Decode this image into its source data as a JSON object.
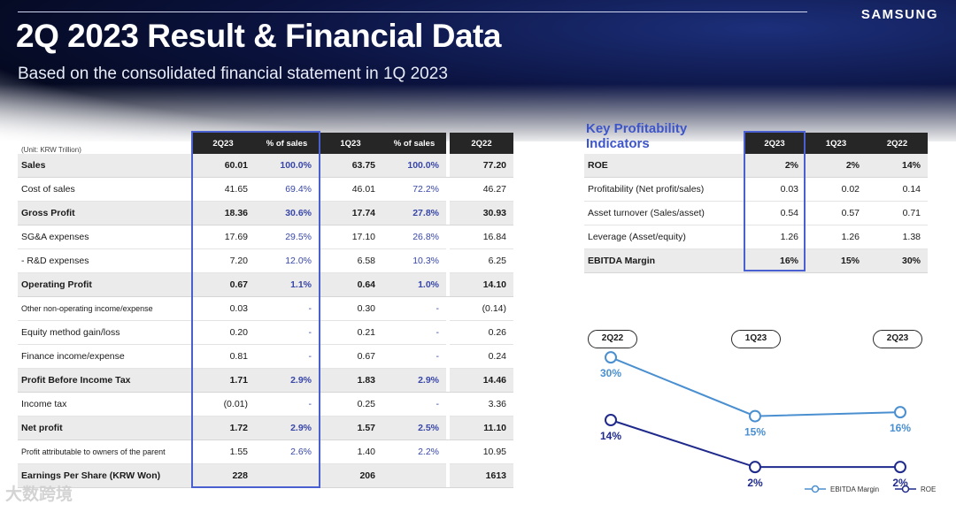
{
  "header": {
    "brand": "SAMSUNG",
    "title": "2Q 2023 Result & Financial Data",
    "subtitle": "Based on the consolidated financial statement in 1Q 2023"
  },
  "income_table": {
    "unit_label": "(Unit: KRW Trillion)",
    "columns": [
      "2Q23",
      "% of sales",
      "1Q23",
      "% of sales",
      "2Q22"
    ],
    "rows": [
      {
        "label": "Sales",
        "bold": true,
        "q223": "60.01",
        "pct_q223": "100.0%",
        "q123": "63.75",
        "pct_q123": "100.0%",
        "q222": "77.20"
      },
      {
        "label": "Cost of sales",
        "bold": false,
        "q223": "41.65",
        "pct_q223": "69.4%",
        "q123": "46.01",
        "pct_q123": "72.2%",
        "q222": "46.27"
      },
      {
        "label": "Gross Profit",
        "bold": true,
        "q223": "18.36",
        "pct_q223": "30.6%",
        "q123": "17.74",
        "pct_q123": "27.8%",
        "q222": "30.93"
      },
      {
        "label": "SG&A expenses",
        "bold": false,
        "q223": "17.69",
        "pct_q223": "29.5%",
        "q123": "17.10",
        "pct_q123": "26.8%",
        "q222": "16.84"
      },
      {
        "label": " - R&D expenses",
        "bold": false,
        "q223": "7.20",
        "pct_q223": "12.0%",
        "q123": "6.58",
        "pct_q123": "10.3%",
        "q222": "6.25"
      },
      {
        "label": "Operating Profit",
        "bold": true,
        "q223": "0.67",
        "pct_q223": "1.1%",
        "q123": "0.64",
        "pct_q123": "1.0%",
        "q222": "14.10"
      },
      {
        "label": "Other non-operating income/expense",
        "bold": false,
        "q223": "0.03",
        "pct_q223": "-",
        "q123": "0.30",
        "pct_q123": "-",
        "q222": "(0.14)"
      },
      {
        "label": "Equity method gain/loss",
        "bold": false,
        "q223": "0.20",
        "pct_q223": "-",
        "q123": "0.21",
        "pct_q123": "-",
        "q222": "0.26"
      },
      {
        "label": "Finance income/expense",
        "bold": false,
        "q223": "0.81",
        "pct_q223": "-",
        "q123": "0.67",
        "pct_q123": "-",
        "q222": "0.24"
      },
      {
        "label": "Profit Before Income Tax",
        "bold": true,
        "q223": "1.71",
        "pct_q223": "2.9%",
        "q123": "1.83",
        "pct_q123": "2.9%",
        "q222": "14.46"
      },
      {
        "label": "Income tax",
        "bold": false,
        "q223": "(0.01)",
        "pct_q223": "-",
        "q123": "0.25",
        "pct_q123": "-",
        "q222": "3.36"
      },
      {
        "label": "Net profit",
        "bold": true,
        "q223": "1.72",
        "pct_q223": "2.9%",
        "q123": "1.57",
        "pct_q123": "2.5%",
        "q222": "11.10"
      },
      {
        "label": "Profit attributable to owners of the parent",
        "bold": false,
        "q223": "1.55",
        "pct_q223": "2.6%",
        "q123": "1.40",
        "pct_q123": "2.2%",
        "q222": "10.95"
      },
      {
        "label": "Earnings Per Share (KRW Won)",
        "bold": true,
        "q223": "228",
        "pct_q223": "",
        "q123": "206",
        "pct_q123": "",
        "q222": "1613"
      }
    ]
  },
  "kpi_table": {
    "title": "Key Profitability Indicators",
    "columns": [
      "2Q23",
      "1Q23",
      "2Q22"
    ],
    "rows": [
      {
        "label": "ROE",
        "bold": true,
        "q223": "2%",
        "q123": "2%",
        "q222": "14%"
      },
      {
        "label": "Profitability (Net profit/sales)",
        "bold": false,
        "q223": "0.03",
        "q123": "0.02",
        "q222": "0.14"
      },
      {
        "label": "Asset turnover (Sales/asset)",
        "bold": false,
        "q223": "0.54",
        "q123": "0.57",
        "q222": "0.71"
      },
      {
        "label": "Leverage (Asset/equity)",
        "bold": false,
        "q223": "1.26",
        "q123": "1.26",
        "q222": "1.38"
      },
      {
        "label": "EBITDA Margin",
        "bold": true,
        "q223": "16%",
        "q123": "15%",
        "q222": "30%"
      }
    ]
  },
  "chart_data": {
    "type": "line",
    "categories": [
      "2Q22",
      "1Q23",
      "2Q23"
    ],
    "series": [
      {
        "name": "EBITDA Margin",
        "values": [
          30,
          15,
          16
        ],
        "labels": [
          "30%",
          "15%",
          "16%"
        ],
        "color": "#4a8fd0"
      },
      {
        "name": "ROE",
        "values": [
          14,
          2,
          2
        ],
        "labels": [
          "14%",
          "2%",
          "2%"
        ],
        "color": "#1f2a8c"
      }
    ],
    "ylim": [
      0,
      35
    ],
    "grid": false,
    "legend": "bottom-right"
  },
  "watermark": "大数跨境",
  "colors": {
    "highlight": "#4a5fd0",
    "pct_text": "#3847a8",
    "kpi_title": "#3d55c9"
  }
}
